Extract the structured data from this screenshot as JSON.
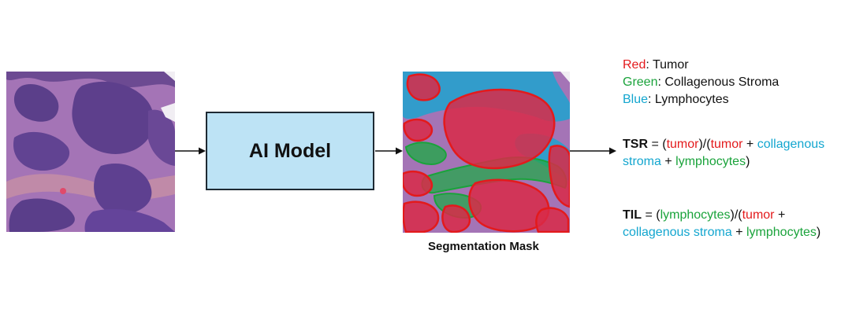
{
  "model": {
    "label": "AI Model"
  },
  "mask": {
    "caption": "Segmentation Mask"
  },
  "legend": [
    {
      "color_name": "Red",
      "meaning": "Tumor"
    },
    {
      "color_name": "Green",
      "meaning": "Collagenous Stroma"
    },
    {
      "color_name": "Blue",
      "meaning": "Lymphocytes"
    }
  ],
  "formulas": {
    "tsr": {
      "name": "TSR",
      "eq": " = ",
      "open": "(",
      "tumor": "tumor",
      "mid": ")/(",
      "tumor2": "tumor",
      "plus1": " + ",
      "collagenous": "collagenous",
      "stroma": "stroma",
      "plus2": " + ",
      "lymphocytes": "lymphocytes",
      "close": ")"
    },
    "til": {
      "name": "TIL",
      "eq": " = ",
      "open": "(",
      "lymphocytes": "lymphocytes",
      "mid": ")/(",
      "tumor": "tumor",
      "plus1": " +",
      "collagenous_stroma": "collagenous stroma",
      "plus2": " + ",
      "lymphocytes2": "lymphocytes",
      "close": ")"
    }
  },
  "colors": {
    "tumor": "#e31a1c",
    "stroma": "#1aa33b",
    "lymphocytes": "#13a6cf",
    "model_box": "#bde3f5",
    "tissue": "#8a5a9e"
  }
}
